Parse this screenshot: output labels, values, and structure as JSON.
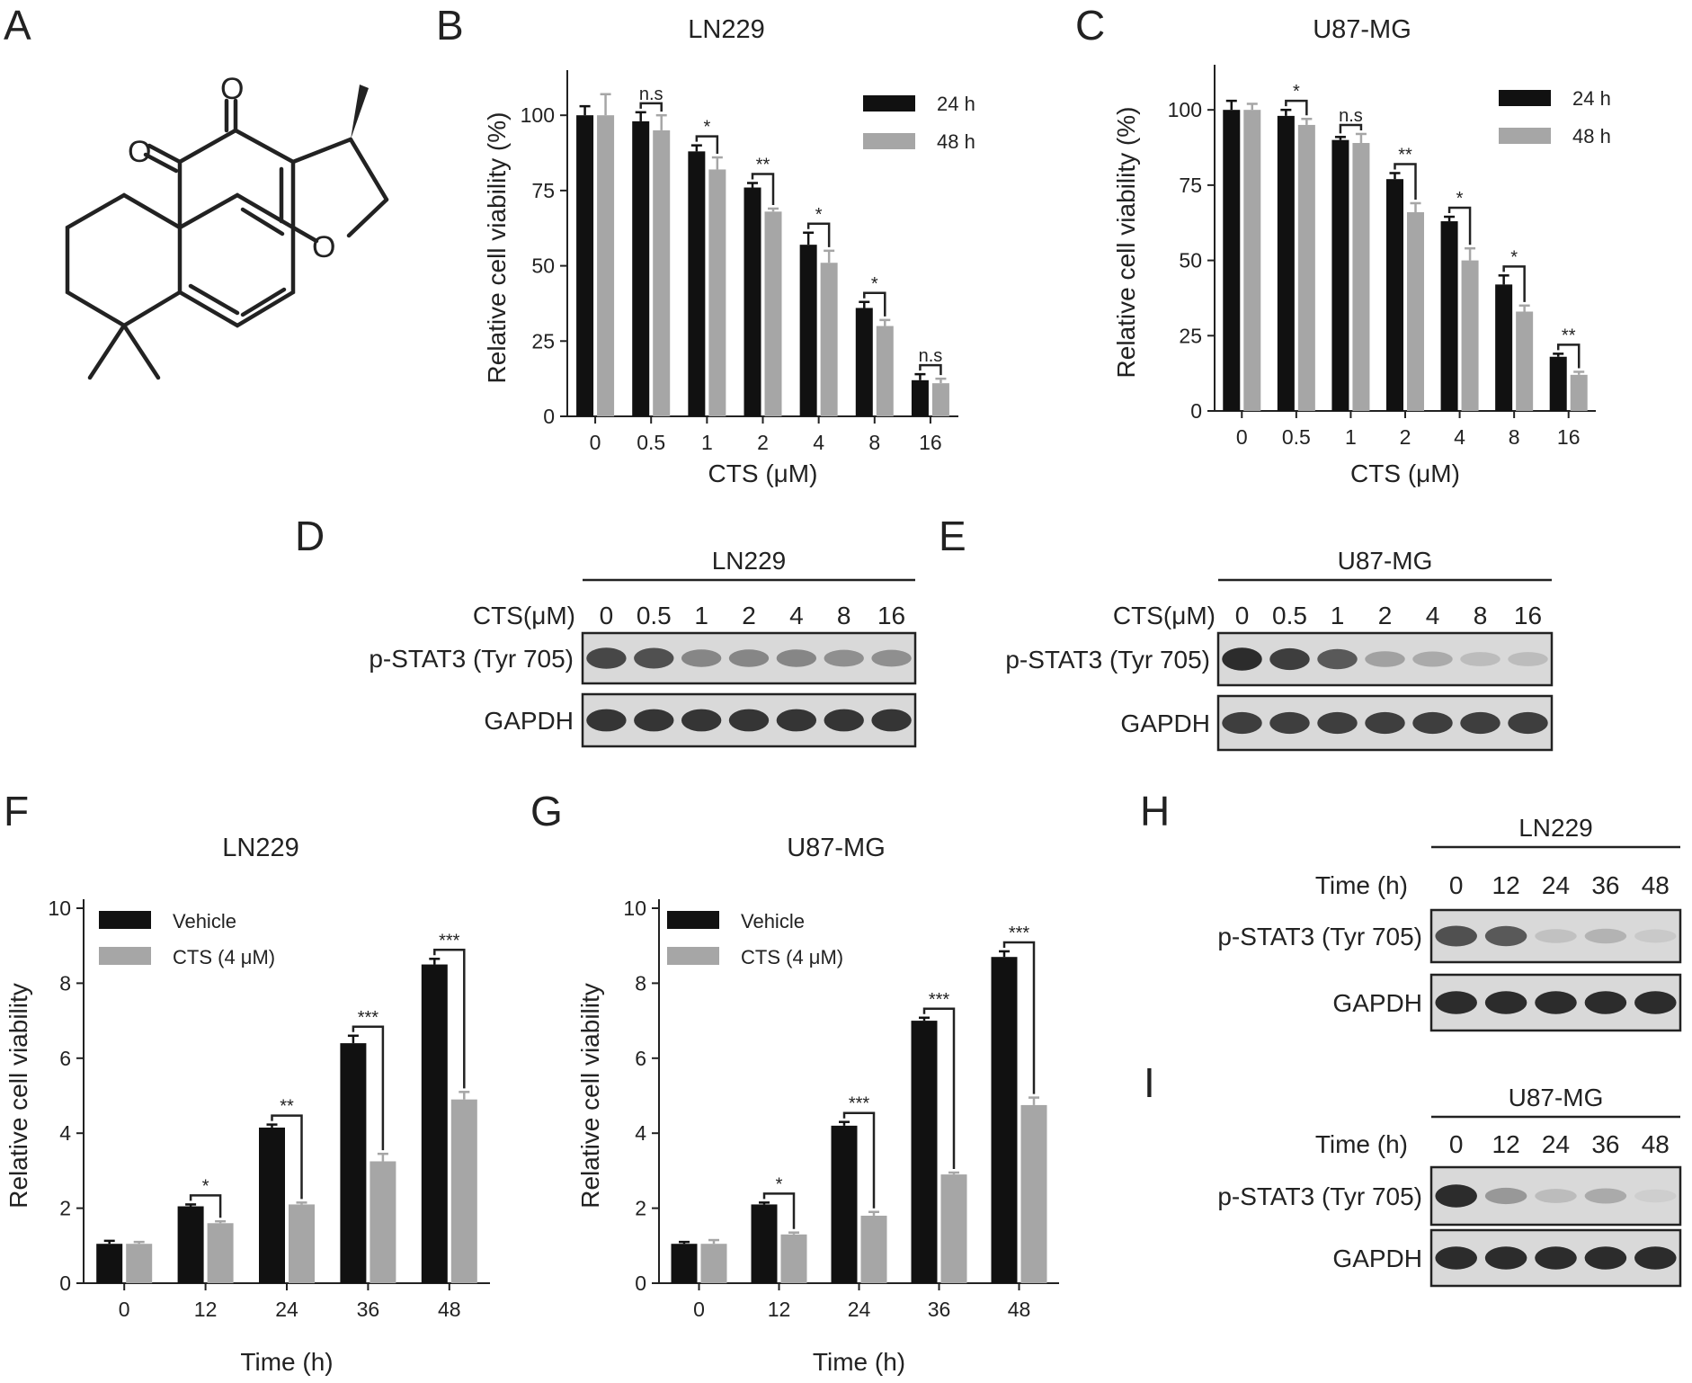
{
  "panels": {
    "A": "A",
    "B": "B",
    "C": "C",
    "D": "D",
    "E": "E",
    "F": "F",
    "G": "G",
    "H": "H",
    "I": "I"
  },
  "structure": {
    "atoms": [
      "O",
      "O",
      "O"
    ]
  },
  "chart_data": [
    {
      "panel": "B",
      "type": "bar",
      "title": "LN229",
      "xlabel": "CTS (μM)",
      "ylabel": "Relative cell viability (%)",
      "categories": [
        "0",
        "0.5",
        "1",
        "2",
        "4",
        "8",
        "16"
      ],
      "ylim": [
        0,
        112
      ],
      "yticks": [
        0,
        25,
        50,
        75,
        100
      ],
      "legend_position": "top-right",
      "series": [
        {
          "name": "24 h",
          "color": "#111111",
          "values": [
            100,
            98,
            88,
            76,
            57,
            36,
            12
          ],
          "errors": [
            3,
            3,
            2,
            1.5,
            4,
            2,
            2
          ]
        },
        {
          "name": "48 h",
          "color": "#a6a6a6",
          "values": [
            100,
            95,
            82,
            68,
            51,
            30,
            11
          ],
          "errors": [
            7,
            5,
            4,
            1,
            4,
            2,
            1.5
          ]
        }
      ],
      "significance": [
        "",
        "n.s",
        "*",
        "**",
        "*",
        "*",
        "n.s"
      ]
    },
    {
      "panel": "C",
      "type": "bar",
      "title": "U87-MG",
      "xlabel": "CTS (μM)",
      "ylabel": "Relative cell viability (%)",
      "categories": [
        "0",
        "0.5",
        "1",
        "2",
        "4",
        "8",
        "16"
      ],
      "ylim": [
        0,
        112
      ],
      "yticks": [
        0,
        25,
        50,
        75,
        100
      ],
      "legend_position": "top-right",
      "series": [
        {
          "name": "24 h",
          "color": "#111111",
          "values": [
            100,
            98,
            90,
            77,
            63,
            42,
            18
          ],
          "errors": [
            3,
            2,
            1,
            2,
            1.5,
            3,
            1
          ]
        },
        {
          "name": "48 h",
          "color": "#a6a6a6",
          "values": [
            100,
            95,
            89,
            66,
            50,
            33,
            12
          ],
          "errors": [
            2,
            2,
            3,
            3,
            4,
            2,
            1
          ]
        }
      ],
      "significance": [
        "",
        "*",
        "n.s",
        "**",
        "*",
        "*",
        "**"
      ]
    },
    {
      "panel": "F",
      "type": "bar",
      "title": "LN229",
      "xlabel": "Time (h)",
      "ylabel": "Relative cell viability",
      "categories": [
        "0",
        "12",
        "24",
        "36",
        "48"
      ],
      "ylim": [
        0,
        10
      ],
      "yticks": [
        0,
        2,
        4,
        6,
        8,
        10
      ],
      "legend_position": "top-left",
      "series": [
        {
          "name": "Vehicle",
          "color": "#111111",
          "values": [
            1.05,
            2.05,
            4.15,
            6.4,
            8.5
          ],
          "errors": [
            0.08,
            0.05,
            0.08,
            0.2,
            0.15
          ]
        },
        {
          "name": "CTS (4 μM)",
          "color": "#a6a6a6",
          "values": [
            1.05,
            1.6,
            2.1,
            3.25,
            4.9
          ],
          "errors": [
            0.05,
            0.05,
            0.05,
            0.2,
            0.2
          ]
        }
      ],
      "significance": [
        "",
        "*",
        "**",
        "***",
        "***"
      ]
    },
    {
      "panel": "G",
      "type": "bar",
      "title": "U87-MG",
      "xlabel": "Time (h)",
      "ylabel": "Relative cell viability",
      "categories": [
        "0",
        "12",
        "24",
        "36",
        "48"
      ],
      "ylim": [
        0,
        10
      ],
      "yticks": [
        0,
        2,
        4,
        6,
        8,
        10
      ],
      "legend_position": "top-left",
      "series": [
        {
          "name": "Vehicle",
          "color": "#111111",
          "values": [
            1.05,
            2.1,
            4.2,
            7.0,
            8.7
          ],
          "errors": [
            0.05,
            0.05,
            0.1,
            0.08,
            0.15
          ]
        },
        {
          "name": "CTS (4 μM)",
          "color": "#a6a6a6",
          "values": [
            1.05,
            1.3,
            1.8,
            2.9,
            4.75
          ],
          "errors": [
            0.1,
            0.05,
            0.1,
            0.05,
            0.2
          ]
        }
      ],
      "significance": [
        "",
        "*",
        "***",
        "***",
        "***"
      ]
    }
  ],
  "blots": [
    {
      "panel": "D",
      "cell_line": "LN229",
      "condition_label": "CTS(μM)",
      "lanes": [
        "0",
        "0.5",
        "1",
        "2",
        "4",
        "8",
        "16"
      ],
      "rows": [
        {
          "label": "p-STAT3 (Tyr 705)",
          "intensity": [
            0.8,
            0.75,
            0.45,
            0.45,
            0.45,
            0.4,
            0.4
          ]
        },
        {
          "label": "GAPDH",
          "intensity": [
            0.9,
            0.9,
            0.9,
            0.9,
            0.9,
            0.9,
            0.9
          ]
        }
      ]
    },
    {
      "panel": "E",
      "cell_line": "U87-MG",
      "condition_label": "CTS(μM)",
      "lanes": [
        "0",
        "0.5",
        "1",
        "2",
        "4",
        "8",
        "16"
      ],
      "rows": [
        {
          "label": "p-STAT3 (Tyr 705)",
          "intensity": [
            0.95,
            0.85,
            0.7,
            0.3,
            0.25,
            0.15,
            0.15
          ]
        },
        {
          "label": "GAPDH",
          "intensity": [
            0.85,
            0.85,
            0.85,
            0.85,
            0.85,
            0.85,
            0.85
          ]
        }
      ]
    },
    {
      "panel": "H",
      "cell_line": "LN229",
      "condition_label": "Time (h)",
      "lanes": [
        "0",
        "12",
        "24",
        "36",
        "48"
      ],
      "rows": [
        {
          "label": "p-STAT3 (Tyr 705)",
          "intensity": [
            0.75,
            0.7,
            0.12,
            0.2,
            0.08
          ]
        },
        {
          "label": "GAPDH",
          "intensity": [
            0.95,
            0.95,
            0.95,
            0.95,
            0.95
          ]
        }
      ]
    },
    {
      "panel": "I",
      "cell_line": "U87-MG",
      "condition_label": "Time (h)",
      "lanes": [
        "0",
        "12",
        "24",
        "36",
        "48"
      ],
      "rows": [
        {
          "label": "p-STAT3 (Tyr 705)",
          "intensity": [
            0.95,
            0.35,
            0.15,
            0.25,
            0.05
          ]
        },
        {
          "label": "GAPDH",
          "intensity": [
            0.95,
            0.95,
            0.95,
            0.95,
            0.95
          ]
        }
      ]
    }
  ]
}
